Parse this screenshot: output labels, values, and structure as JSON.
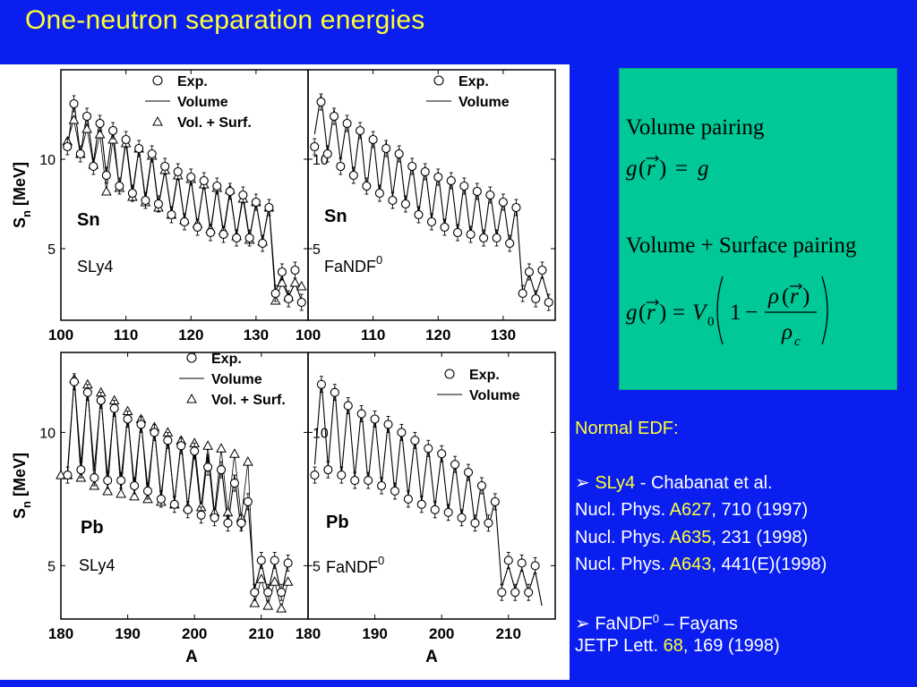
{
  "slide": {
    "title": "One-neutron separation energies"
  },
  "colors": {
    "background": "#0a1ef0",
    "title": "#ffff33",
    "formula_box": "#00c896",
    "highlight": "#ffff33"
  },
  "legend": {
    "exp": "Exp.",
    "volume": "Volume",
    "vol_surf": "Vol. + Surf."
  },
  "chart_data": [
    {
      "type": "scatter",
      "element": "Sn",
      "model": "SLy4",
      "model_sup": "",
      "ylabel": "Sn [MeV]",
      "xlabel": "",
      "xlim": [
        100,
        138
      ],
      "ylim": [
        1.0,
        15.0
      ],
      "xticks": [
        100,
        110,
        120,
        130
      ],
      "yticks": [
        5,
        10
      ],
      "legend": [
        "Exp.",
        "Volume",
        "Vol. + Surf."
      ],
      "series": [
        {
          "name": "Exp.",
          "x": [
            101,
            102,
            103,
            104,
            105,
            106,
            107,
            108,
            109,
            110,
            111,
            112,
            113,
            114,
            115,
            116,
            117,
            118,
            119,
            120,
            121,
            122,
            123,
            124,
            125,
            126,
            127,
            128,
            129,
            130,
            131,
            132,
            133,
            134,
            135,
            136,
            137
          ],
          "y": [
            10.7,
            13.1,
            10.3,
            12.4,
            9.6,
            12.0,
            9.1,
            11.6,
            8.5,
            11.1,
            8.1,
            10.6,
            7.7,
            10.3,
            7.5,
            9.6,
            6.9,
            9.3,
            6.5,
            9.0,
            6.2,
            8.8,
            5.9,
            8.5,
            5.8,
            8.2,
            5.6,
            8.0,
            5.6,
            7.6,
            5.3,
            7.3,
            2.5,
            3.7,
            2.2,
            3.8,
            2.0
          ]
        },
        {
          "name": "Volume",
          "x": [
            101,
            102,
            103,
            104,
            105,
            106,
            107,
            108,
            109,
            110,
            111,
            112,
            113,
            114,
            115,
            116,
            117,
            118,
            119,
            120,
            121,
            122,
            123,
            124,
            125,
            126,
            127,
            128,
            129,
            130,
            131,
            132,
            133,
            134,
            135,
            136,
            137
          ],
          "y": [
            10.5,
            13.3,
            10.2,
            12.6,
            9.8,
            12.3,
            9.1,
            11.7,
            8.3,
            11.1,
            8.1,
            10.6,
            7.8,
            10.3,
            7.4,
            9.4,
            7.0,
            9.2,
            6.6,
            8.9,
            6.3,
            8.7,
            5.9,
            8.5,
            5.8,
            8.2,
            5.7,
            8.0,
            5.6,
            7.6,
            5.4,
            7.4,
            2.6,
            3.5,
            2.3,
            3.1,
            2.1
          ]
        },
        {
          "name": "Vol. + Surf.",
          "x": [
            101,
            102,
            103,
            104,
            105,
            106,
            107,
            108,
            109,
            110,
            111,
            112,
            113,
            114,
            115,
            116,
            117,
            118,
            119,
            120,
            121,
            122,
            123,
            124,
            125,
            126,
            127,
            128,
            129,
            130,
            131,
            132,
            133,
            134,
            135,
            136,
            137
          ],
          "y": [
            11.0,
            12.2,
            10.3,
            11.7,
            9.7,
            11.4,
            8.2,
            11.1,
            8.4,
            10.9,
            7.9,
            10.6,
            7.6,
            10.2,
            7.3,
            9.4,
            6.9,
            9.1,
            6.6,
            8.9,
            6.4,
            8.6,
            6.1,
            8.4,
            6.0,
            8.3,
            5.7,
            7.8,
            5.5,
            7.6,
            5.4,
            7.3,
            2.1,
            3.1,
            2.3,
            3.1,
            2.9
          ]
        }
      ]
    },
    {
      "type": "scatter",
      "element": "Sn",
      "model": "FaNDF",
      "model_sup": "0",
      "ylabel": "",
      "xlabel": "",
      "xlim": [
        100,
        138
      ],
      "ylim": [
        1.0,
        15.0
      ],
      "xticks": [
        100,
        110,
        120,
        130
      ],
      "yticks": [
        5,
        10
      ],
      "legend": [
        "Exp.",
        "Volume"
      ],
      "series": [
        {
          "name": "Exp.",
          "x": [
            101,
            102,
            103,
            104,
            105,
            106,
            107,
            108,
            109,
            110,
            111,
            112,
            113,
            114,
            115,
            116,
            117,
            118,
            119,
            120,
            121,
            122,
            123,
            124,
            125,
            126,
            127,
            128,
            129,
            130,
            131,
            132,
            133,
            134,
            135,
            136,
            137
          ],
          "y": [
            10.7,
            13.2,
            10.3,
            12.4,
            9.6,
            12.0,
            9.1,
            11.6,
            8.5,
            11.1,
            8.1,
            10.6,
            7.7,
            10.3,
            7.5,
            9.6,
            6.9,
            9.3,
            6.5,
            9.0,
            6.2,
            8.8,
            5.9,
            8.5,
            5.8,
            8.2,
            5.6,
            8.0,
            5.6,
            7.6,
            5.3,
            7.3,
            2.5,
            3.7,
            2.2,
            3.8,
            2.0
          ]
        },
        {
          "name": "Volume",
          "x": [
            101,
            102,
            103,
            104,
            105,
            106,
            107,
            108,
            109,
            110,
            111,
            112,
            113,
            114,
            115,
            116,
            117,
            118,
            119,
            120,
            121,
            122,
            123,
            124,
            125,
            126,
            127,
            128,
            129,
            130,
            131,
            132,
            133,
            134,
            135,
            136,
            137
          ],
          "y": [
            11.4,
            13.6,
            10.3,
            12.8,
            9.9,
            12.3,
            9.0,
            11.8,
            8.2,
            11.4,
            8.0,
            11.0,
            7.9,
            10.6,
            7.5,
            9.8,
            6.9,
            9.6,
            6.6,
            9.3,
            6.2,
            9.0,
            5.9,
            8.7,
            5.7,
            8.4,
            5.5,
            8.2,
            5.6,
            7.8,
            5.2,
            7.5,
            2.5,
            3.6,
            2.4,
            3.5,
            2.2
          ]
        }
      ]
    },
    {
      "type": "scatter",
      "element": "Pb",
      "model": "SLy4",
      "model_sup": "",
      "ylabel": "Sn [MeV]",
      "xlabel": "A",
      "xlim": [
        180,
        217
      ],
      "ylim": [
        3.0,
        13.0
      ],
      "xticks": [
        180,
        190,
        200,
        210
      ],
      "yticks": [
        5,
        10
      ],
      "legend": [
        "Exp.",
        "Volume",
        "Vol. + Surf."
      ],
      "series": [
        {
          "name": "Exp.",
          "x": [
            181,
            182,
            183,
            184,
            185,
            186,
            187,
            188,
            189,
            190,
            191,
            192,
            193,
            194,
            195,
            196,
            197,
            198,
            199,
            200,
            201,
            202,
            203,
            204,
            205,
            206,
            207,
            208,
            209,
            210,
            211,
            212,
            213,
            214
          ],
          "y": [
            8.4,
            11.9,
            8.6,
            11.5,
            8.3,
            11.2,
            8.2,
            10.9,
            8.2,
            10.5,
            8.0,
            10.3,
            7.8,
            10.0,
            7.5,
            9.7,
            7.3,
            9.5,
            7.1,
            9.3,
            6.9,
            8.7,
            6.8,
            8.6,
            6.6,
            8.1,
            6.6,
            7.4,
            4.0,
            5.2,
            4.0,
            5.2,
            4.0,
            5.1
          ]
        },
        {
          "name": "Volume",
          "x": [
            181,
            182,
            183,
            184,
            185,
            186,
            187,
            188,
            189,
            190,
            191,
            192,
            193,
            194,
            195,
            196,
            197,
            198,
            199,
            200,
            201,
            202,
            203,
            204,
            205,
            206,
            207,
            208,
            209,
            210,
            211,
            212,
            213,
            214
          ],
          "y": [
            8.6,
            12.0,
            8.8,
            11.6,
            8.6,
            11.3,
            8.3,
            11.0,
            8.2,
            10.6,
            8.0,
            10.4,
            7.9,
            10.1,
            7.6,
            9.8,
            7.4,
            9.6,
            7.2,
            9.3,
            7.0,
            9.2,
            6.8,
            8.8,
            6.5,
            8.4,
            6.3,
            7.4,
            4.1,
            5.1,
            4.0,
            5.1,
            3.9,
            5.1
          ]
        },
        {
          "name": "Vol. + Surf.",
          "x": [
            180,
            181,
            182,
            183,
            184,
            185,
            186,
            187,
            188,
            189,
            190,
            191,
            192,
            193,
            194,
            195,
            196,
            197,
            198,
            199,
            200,
            201,
            202,
            203,
            204,
            205,
            206,
            207,
            208,
            209,
            210,
            211,
            212,
            213,
            214
          ],
          "y": [
            8.4,
            8.4,
            12.0,
            8.3,
            11.8,
            8.0,
            11.5,
            7.8,
            11.2,
            7.7,
            10.8,
            7.6,
            10.5,
            7.5,
            10.2,
            7.4,
            10.0,
            7.3,
            9.7,
            7.2,
            9.6,
            7.2,
            9.5,
            7.0,
            9.4,
            7.0,
            9.2,
            6.8,
            8.9,
            3.6,
            4.5,
            3.5,
            4.4,
            3.4,
            4.4
          ]
        }
      ]
    },
    {
      "type": "scatter",
      "element": "Pb",
      "model": "FaNDF",
      "model_sup": "0",
      "ylabel": "",
      "xlabel": "A",
      "xlim": [
        180,
        217
      ],
      "ylim": [
        3.0,
        13.0
      ],
      "xticks": [
        180,
        190,
        200,
        210
      ],
      "yticks": [
        5,
        10
      ],
      "legend": [
        "Exp.",
        "Volume"
      ],
      "series": [
        {
          "name": "Exp.",
          "x": [
            181,
            182,
            183,
            184,
            185,
            186,
            187,
            188,
            189,
            190,
            191,
            192,
            193,
            194,
            195,
            196,
            197,
            198,
            199,
            200,
            201,
            202,
            203,
            204,
            205,
            206,
            207,
            208,
            209,
            210,
            211,
            212,
            213,
            214
          ],
          "y": [
            8.4,
            11.8,
            8.6,
            11.5,
            8.4,
            11.0,
            8.2,
            10.7,
            8.2,
            10.5,
            8.0,
            10.3,
            7.8,
            10.0,
            7.5,
            9.7,
            7.3,
            9.4,
            7.1,
            9.2,
            7.0,
            8.8,
            6.8,
            8.5,
            6.6,
            8.0,
            6.6,
            7.4,
            4.0,
            5.2,
            4.0,
            5.1,
            4.0,
            5.0
          ]
        },
        {
          "name": "Volume",
          "x": [
            181,
            182,
            183,
            184,
            185,
            186,
            187,
            188,
            189,
            190,
            191,
            192,
            193,
            194,
            195,
            196,
            197,
            198,
            199,
            200,
            201,
            202,
            203,
            204,
            205,
            206,
            207,
            208,
            209,
            210,
            211,
            212,
            213,
            214,
            215
          ],
          "y": [
            8.8,
            12.0,
            8.7,
            11.7,
            8.4,
            11.2,
            8.3,
            10.9,
            8.1,
            10.6,
            8.0,
            10.4,
            7.7,
            10.1,
            7.6,
            9.8,
            7.4,
            9.5,
            7.2,
            9.2,
            7.0,
            8.9,
            6.8,
            8.6,
            6.5,
            8.2,
            6.4,
            7.5,
            4.2,
            5.0,
            4.1,
            4.9,
            4.0,
            4.8,
            3.5
          ]
        }
      ]
    }
  ],
  "formulas": {
    "volume_title": "Volume pairing",
    "volume_eq": "g(r) = g",
    "vs_title": "Volume + Surface pairing",
    "vs_eq": "g(r) = V0 (1 - ρ(r)/ρc)"
  },
  "references": {
    "normal_edf": "Normal EDF:",
    "sly4_name": "SLy4",
    "sly4_authors": " - Chabanat et al.",
    "refs": [
      {
        "journal": "Nucl. Phys. ",
        "volume": "A627",
        "rest": ", 710 (1997)"
      },
      {
        "journal": "Nucl. Phys. ",
        "volume": "A635",
        "rest": ", 231 (1998)"
      },
      {
        "journal": "Nucl. Phys. ",
        "volume": "A643",
        "rest": ", 441(E)(1998)"
      }
    ],
    "fandf_name": "FaNDF",
    "fandf_sup": "0",
    "fandf_authors": " – Fayans",
    "jetp_journal": "JETP Lett. ",
    "jetp_volume": "68",
    "jetp_rest": ", 169 (1998)"
  }
}
